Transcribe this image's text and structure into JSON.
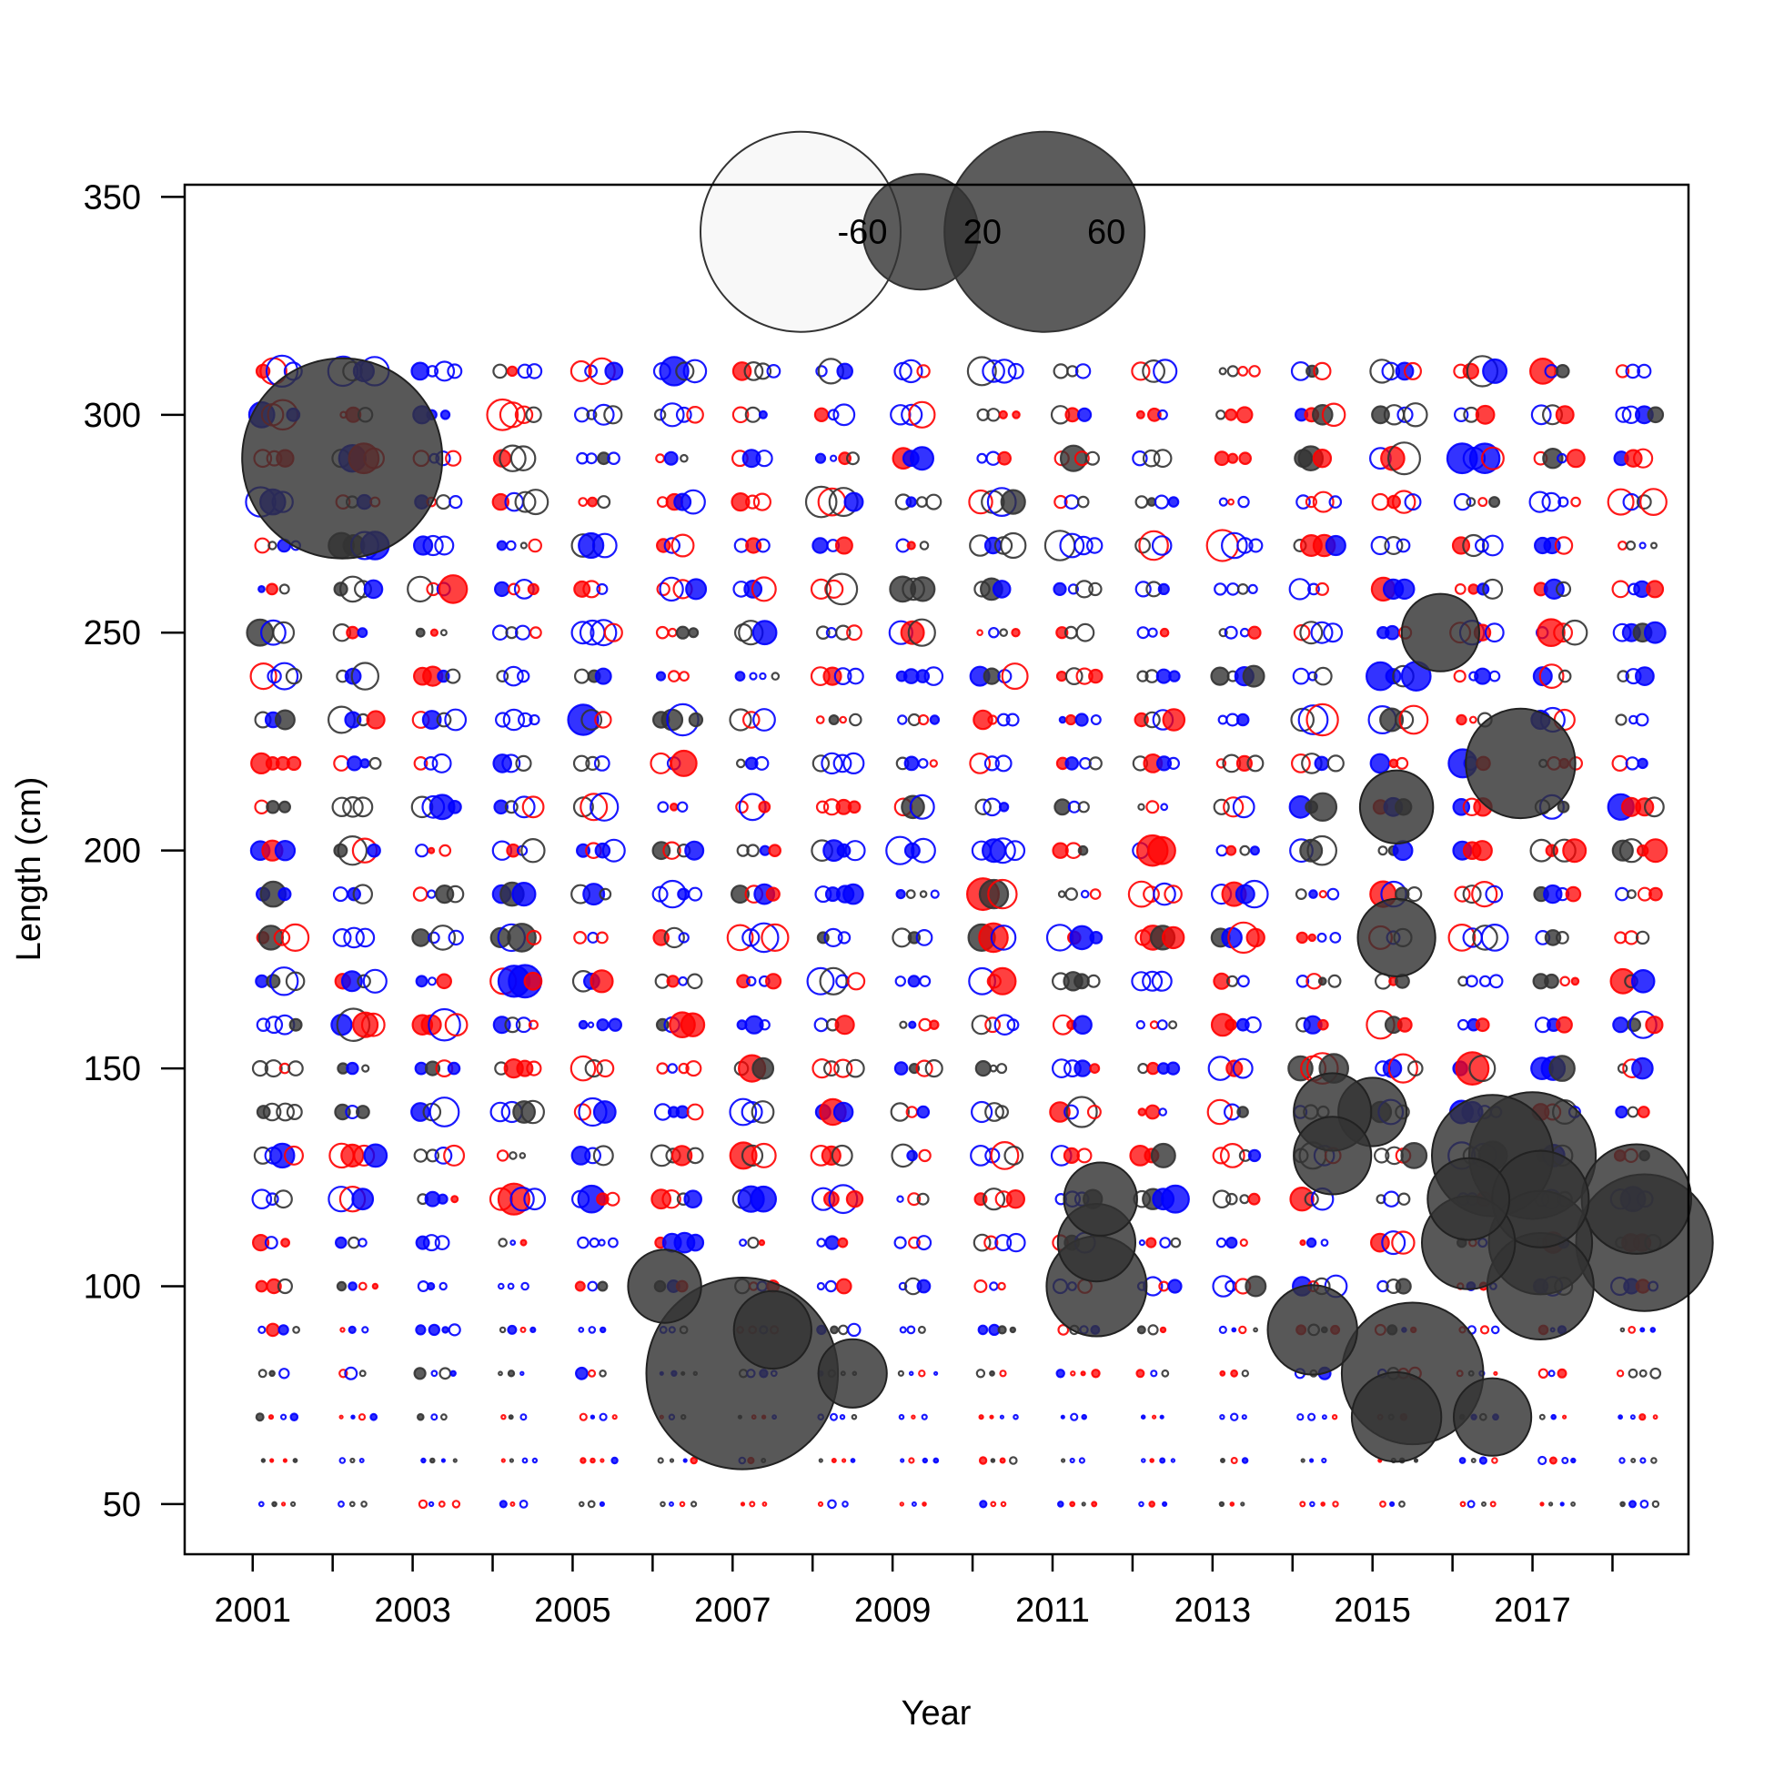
{
  "chart_data": {
    "type": "scatter",
    "subtype": "bubble",
    "title": "",
    "xlabel": "Year",
    "ylabel": "Length (cm)",
    "xlim": [
      2000.15,
      2018.95
    ],
    "ylim": [
      38.5,
      352.8
    ],
    "x_ticks": [
      2001,
      2002,
      2003,
      2004,
      2005,
      2006,
      2007,
      2008,
      2009,
      2010,
      2011,
      2012,
      2013,
      2014,
      2015,
      2016,
      2017,
      2018
    ],
    "x_tick_labels": [
      "2001",
      "",
      "2003",
      "",
      "2005",
      "",
      "2007",
      "",
      "2009",
      "",
      "2011",
      "",
      "2013",
      "",
      "2015",
      "",
      "2017",
      ""
    ],
    "y_ticks": [
      50,
      100,
      150,
      200,
      250,
      300,
      350
    ],
    "y_tick_labels": [
      "50",
      "100",
      "150",
      "200",
      "250",
      "300",
      "350"
    ],
    "grid": false,
    "legend": {
      "position": "top-center",
      "entries": [
        {
          "label": "-60",
          "value": -60
        },
        {
          "label": "20",
          "value": 20
        },
        {
          "label": "60",
          "value": 60
        }
      ]
    },
    "colors": {
      "negative_fill": "#f2f2f2",
      "positive_fill": "#333333",
      "outline": "#333333",
      "series_red": "#ff0000",
      "series_blue": "#0000ff"
    },
    "lengths": [
      50,
      60,
      70,
      80,
      90,
      100,
      110,
      120,
      130,
      140,
      150,
      160,
      170,
      180,
      190,
      200,
      210,
      220,
      230,
      240,
      250,
      260,
      270,
      280,
      290,
      300,
      310
    ],
    "large_residuals": [
      {
        "year": 2002.12,
        "length": 290,
        "value": 60
      },
      {
        "year": 2007.12,
        "length": 80,
        "value": 55
      },
      {
        "year": 2015.5,
        "length": 80,
        "value": 30
      },
      {
        "year": 2017.0,
        "length": 130,
        "value": 24
      },
      {
        "year": 2016.5,
        "length": 130,
        "value": 22
      },
      {
        "year": 2018.4,
        "length": 110,
        "value": 28
      },
      {
        "year": 2018.3,
        "length": 120,
        "value": 18
      },
      {
        "year": 2017.1,
        "length": 110,
        "value": 16
      },
      {
        "year": 2017.1,
        "length": 100,
        "value": 17
      },
      {
        "year": 2017.1,
        "length": 120,
        "value": 14
      },
      {
        "year": 2016.2,
        "length": 110,
        "value": 13
      },
      {
        "year": 2016.2,
        "length": 120,
        "value": 10
      },
      {
        "year": 2016.5,
        "length": 70,
        "value": 9
      },
      {
        "year": 2016.85,
        "length": 220,
        "value": 18
      },
      {
        "year": 2015.85,
        "length": 250,
        "value": 9
      },
      {
        "year": 2015.3,
        "length": 210,
        "value": 8
      },
      {
        "year": 2015.3,
        "length": 180,
        "value": 9
      },
      {
        "year": 2015.3,
        "length": 70,
        "value": 12
      },
      {
        "year": 2015.0,
        "length": 140,
        "value": 7
      },
      {
        "year": 2011.55,
        "length": 100,
        "value": 15
      },
      {
        "year": 2011.55,
        "length": 110,
        "value": 9
      },
      {
        "year": 2011.6,
        "length": 120,
        "value": 8
      },
      {
        "year": 2014.25,
        "length": 90,
        "value": 12
      },
      {
        "year": 2014.5,
        "length": 140,
        "value": 9
      },
      {
        "year": 2014.5,
        "length": 130,
        "value": 9
      },
      {
        "year": 2006.15,
        "length": 100,
        "value": 8
      },
      {
        "year": 2007.5,
        "length": 90,
        "value": 9
      },
      {
        "year": 2008.5,
        "length": 80,
        "value": 7
      }
    ]
  }
}
